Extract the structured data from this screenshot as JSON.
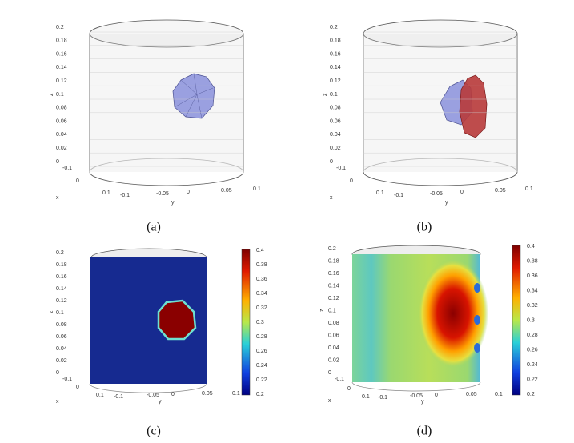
{
  "panels": [
    {
      "caption": "(a)",
      "z_label": "z",
      "x_label": "x",
      "y_label": "y",
      "z_ticks": [
        "0.2",
        "0.18",
        "0.16",
        "0.14",
        "0.12",
        "0.1",
        "0.08",
        "0.06",
        "0.04",
        "0.02",
        "0"
      ],
      "x_ticks": [
        "-0.1",
        "0",
        "0.1"
      ],
      "y_ticks": [
        "-0.1",
        "-0.05",
        "0",
        "0.05",
        "0.1"
      ]
    },
    {
      "caption": "(b)",
      "z_label": "z",
      "x_label": "x",
      "y_label": "y",
      "z_ticks": [
        "0.2",
        "0.18",
        "0.16",
        "0.14",
        "0.12",
        "0.1",
        "0.08",
        "0.06",
        "0.04",
        "0.02",
        "0"
      ],
      "x_ticks": [
        "-0.1",
        "0",
        "0.1"
      ],
      "y_ticks": [
        "-0.1",
        "-0.05",
        "0",
        "0.05",
        "0.1"
      ]
    },
    {
      "caption": "(c)",
      "z_label": "z",
      "x_label": "x",
      "y_label": "y",
      "z_ticks": [
        "0.2",
        "0.18",
        "0.16",
        "0.14",
        "0.12",
        "0.1",
        "0.08",
        "0.06",
        "0.04",
        "0.02",
        "0"
      ],
      "x_ticks": [
        "-0.1",
        "0",
        "0.1"
      ],
      "y_ticks": [
        "-0.1",
        "-0.05",
        "0",
        "0.05",
        "0.1"
      ],
      "colorbar_ticks": [
        "0.4",
        "0.38",
        "0.36",
        "0.34",
        "0.32",
        "0.3",
        "0.28",
        "0.26",
        "0.24",
        "0.22",
        "0.2"
      ]
    },
    {
      "caption": "(d)",
      "z_label": "z",
      "x_label": "x",
      "y_label": "y",
      "z_ticks": [
        "0.2",
        "0.18",
        "0.16",
        "0.14",
        "0.12",
        "0.1",
        "0.08",
        "0.06",
        "0.04",
        "0.02",
        "0"
      ],
      "x_ticks": [
        "-0.1",
        "0",
        "0.1"
      ],
      "y_ticks": [
        "-0.1",
        "-0.05",
        "0",
        "0.05",
        "0.1"
      ],
      "colorbar_ticks": [
        "0.4",
        "0.38",
        "0.36",
        "0.34",
        "0.32",
        "0.3",
        "0.28",
        "0.26",
        "0.24",
        "0.22",
        "0.2"
      ]
    }
  ]
}
